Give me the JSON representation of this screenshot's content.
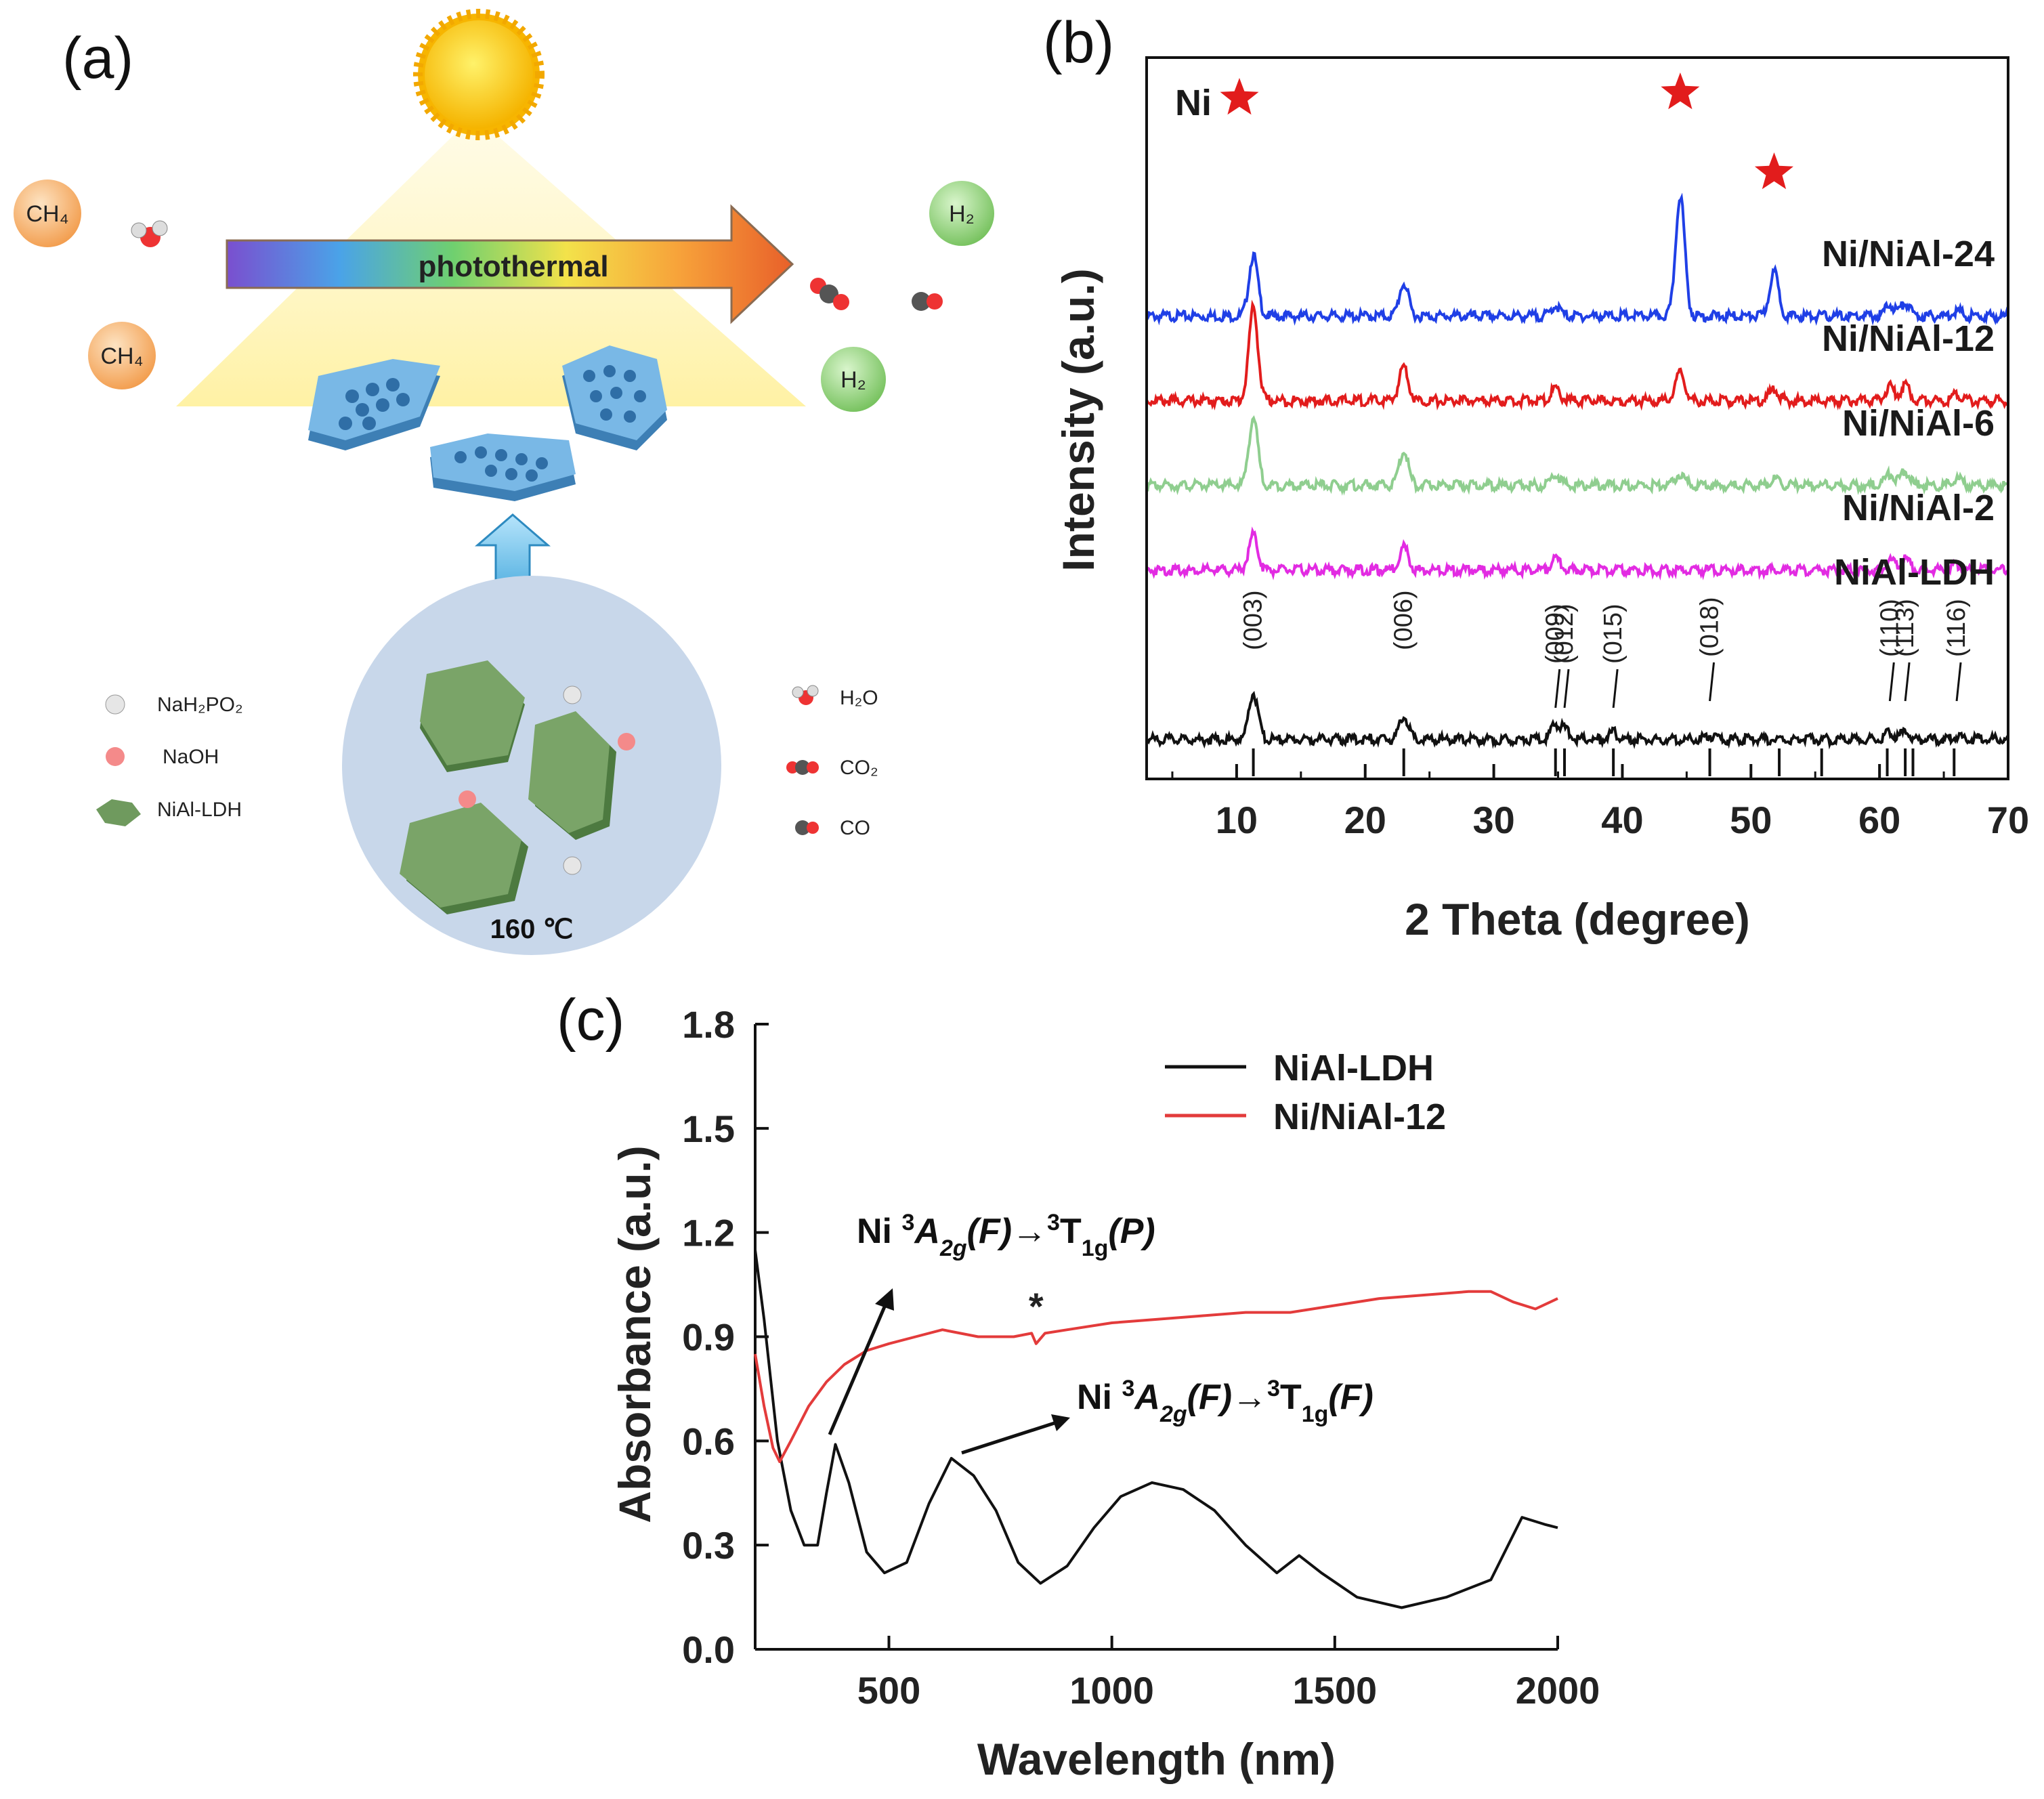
{
  "panels": {
    "a_label": "(a)",
    "b_label": "(b)",
    "c_label": "(c)"
  },
  "scheme": {
    "arrow_label": "photothermal",
    "temperature": "160 ℃",
    "reactant_left_1": "CH₄",
    "reactant_left_2": "CH₄",
    "product_1": "H₂",
    "product_2": "H₂",
    "legend_left": [
      {
        "label": "NaH₂PO₂",
        "color": "#d9d9d9"
      },
      {
        "label": "NaOH",
        "color": "#f48a8a"
      },
      {
        "label": "NiAl-LDH",
        "color": "#6f9a5e"
      }
    ],
    "legend_right": [
      {
        "label": "H₂O"
      },
      {
        "label": "CO₂"
      },
      {
        "label": "CO"
      }
    ],
    "colors": {
      "sun": "#ffcc00",
      "ch4_sphere": "#f4a65a",
      "h2_sphere": "#8fd47a",
      "platelet": "#5aa3d8",
      "hexagon": "#7aa468",
      "circle_bg": "#c8d7ea"
    }
  },
  "chart_data": [
    {
      "id": "xrd",
      "type": "line",
      "xlabel": "2 Theta (degree)",
      "ylabel": "Intensity (a.u.)",
      "xlim": [
        3,
        70
      ],
      "xticks": [
        10,
        20,
        30,
        40,
        50,
        60,
        70
      ],
      "yticks": [],
      "ni_marker_label": "Ni",
      "ni_marker_positions": [
        44.5,
        51.8
      ],
      "series": [
        {
          "name": "Ni/NiAl-24",
          "color": "#1f3fe6",
          "offset": 5,
          "peaks": [
            [
              11.3,
              1.3
            ],
            [
              23.0,
              0.7
            ],
            [
              34.8,
              0.22
            ],
            [
              44.5,
              2.6
            ],
            [
              51.8,
              0.95
            ],
            [
              60.8,
              0.25
            ],
            [
              62.0,
              0.28
            ],
            [
              66.0,
              0.12
            ]
          ]
        },
        {
          "name": "Ni/NiAl-12",
          "color": "#e21c1c",
          "offset": 4,
          "peaks": [
            [
              11.3,
              2.0
            ],
            [
              23.0,
              0.75
            ],
            [
              34.8,
              0.25
            ],
            [
              44.5,
              0.6
            ],
            [
              51.8,
              0.25
            ],
            [
              60.8,
              0.3
            ],
            [
              62.0,
              0.32
            ],
            [
              66.0,
              0.15
            ]
          ]
        },
        {
          "name": "Ni/NiAl-6",
          "color": "#8fce8f",
          "offset": 3,
          "peaks": [
            [
              11.3,
              1.45
            ],
            [
              23.0,
              0.75
            ],
            [
              34.8,
              0.25
            ],
            [
              44.5,
              0.25
            ],
            [
              51.8,
              0.12
            ],
            [
              60.8,
              0.25
            ],
            [
              62.0,
              0.3
            ],
            [
              66.0,
              0.15
            ]
          ]
        },
        {
          "name": "Ni/NiAl-2",
          "color": "#e22be2",
          "offset": 2,
          "peaks": [
            [
              11.3,
              0.75
            ],
            [
              23.0,
              0.5
            ],
            [
              34.8,
              0.25
            ],
            [
              60.8,
              0.22
            ],
            [
              62.0,
              0.25
            ],
            [
              66.0,
              0.12
            ]
          ]
        },
        {
          "name": "NiAl-LDH",
          "color": "#111111",
          "offset": 0,
          "peaks": [
            [
              11.3,
              1.0
            ],
            [
              23.0,
              0.5
            ],
            [
              34.8,
              0.3
            ],
            [
              35.5,
              0.2
            ],
            [
              39.3,
              0.15
            ],
            [
              46.8,
              0.08
            ],
            [
              60.8,
              0.15
            ],
            [
              62.0,
              0.15
            ],
            [
              66.0,
              0.07
            ]
          ]
        }
      ],
      "reference_lines": [
        11.3,
        23.0,
        34.8,
        35.5,
        39.3,
        46.8,
        52.2,
        55.5,
        60.6,
        62.0,
        62.6,
        65.8
      ],
      "reflections": [
        {
          "label": "(003)",
          "x": 11.3
        },
        {
          "label": "(006)",
          "x": 23.0
        },
        {
          "label": "(009)",
          "x": 34.8
        },
        {
          "label": "(012)",
          "x": 35.5
        },
        {
          "label": "(015)",
          "x": 39.3
        },
        {
          "label": "(018)",
          "x": 46.8
        },
        {
          "label": "(110)",
          "x": 60.8
        },
        {
          "label": "(113)",
          "x": 62.0
        },
        {
          "label": "(116)",
          "x": 66.0
        }
      ]
    },
    {
      "id": "uvvis",
      "type": "line",
      "xlabel": "Wavelength (nm)",
      "ylabel": "Absorbance (a.u.)",
      "xlim": [
        200,
        2000
      ],
      "ylim": [
        0,
        1.8
      ],
      "xticks": [
        500,
        1000,
        1500,
        2000
      ],
      "yticks": [
        "0.0",
        "0.3",
        "0.6",
        "0.9",
        "1.2",
        "1.5",
        "1.8"
      ],
      "legend": [
        "NiAl-LDH",
        "Ni/NiAl-12"
      ],
      "series": [
        {
          "name": "NiAl-LDH",
          "color": "#111111",
          "points": [
            [
              200,
              1.15
            ],
            [
              220,
              0.95
            ],
            [
              250,
              0.6
            ],
            [
              280,
              0.4
            ],
            [
              310,
              0.3
            ],
            [
              340,
              0.3
            ],
            [
              360,
              0.45
            ],
            [
              380,
              0.59
            ],
            [
              410,
              0.48
            ],
            [
              450,
              0.28
            ],
            [
              490,
              0.22
            ],
            [
              540,
              0.25
            ],
            [
              590,
              0.42
            ],
            [
              640,
              0.55
            ],
            [
              690,
              0.5
            ],
            [
              740,
              0.4
            ],
            [
              790,
              0.25
            ],
            [
              840,
              0.19
            ],
            [
              900,
              0.24
            ],
            [
              960,
              0.35
            ],
            [
              1020,
              0.44
            ],
            [
              1090,
              0.48
            ],
            [
              1160,
              0.46
            ],
            [
              1230,
              0.4
            ],
            [
              1300,
              0.3
            ],
            [
              1370,
              0.22
            ],
            [
              1420,
              0.27
            ],
            [
              1470,
              0.22
            ],
            [
              1550,
              0.15
            ],
            [
              1650,
              0.12
            ],
            [
              1750,
              0.15
            ],
            [
              1850,
              0.2
            ],
            [
              1920,
              0.38
            ],
            [
              1970,
              0.36
            ],
            [
              2000,
              0.35
            ]
          ]
        },
        {
          "name": "Ni/NiAl-12",
          "color": "#e33b3b",
          "points": [
            [
              200,
              0.85
            ],
            [
              220,
              0.7
            ],
            [
              240,
              0.58
            ],
            [
              255,
              0.54
            ],
            [
              280,
              0.6
            ],
            [
              320,
              0.7
            ],
            [
              360,
              0.77
            ],
            [
              400,
              0.82
            ],
            [
              450,
              0.86
            ],
            [
              500,
              0.88
            ],
            [
              560,
              0.9
            ],
            [
              620,
              0.92
            ],
            [
              700,
              0.9
            ],
            [
              780,
              0.9
            ],
            [
              820,
              0.91
            ],
            [
              830,
              0.88
            ],
            [
              850,
              0.91
            ],
            [
              900,
              0.92
            ],
            [
              1000,
              0.94
            ],
            [
              1100,
              0.95
            ],
            [
              1200,
              0.96
            ],
            [
              1300,
              0.97
            ],
            [
              1400,
              0.97
            ],
            [
              1500,
              0.99
            ],
            [
              1600,
              1.01
            ],
            [
              1700,
              1.02
            ],
            [
              1800,
              1.03
            ],
            [
              1850,
              1.03
            ],
            [
              1900,
              1.0
            ],
            [
              1950,
              0.98
            ],
            [
              2000,
              1.01
            ]
          ]
        }
      ],
      "asterisk_label": "*",
      "annotations": [
        {
          "prefix": "Ni ",
          "sup1": "3",
          "term1": "A",
          "sub1": "2g",
          "state1": "(F)",
          "arrow": "→",
          "sup2": "3",
          "term2": "T",
          "sub2": "1g",
          "state2": "(P)"
        },
        {
          "prefix": "Ni ",
          "sup1": "3",
          "term1": "A",
          "sub1": "2g",
          "state1": "(F)",
          "arrow": "→",
          "sup2": "3",
          "term2": "T",
          "sub2": "1g",
          "state2": "(F)"
        }
      ]
    }
  ]
}
